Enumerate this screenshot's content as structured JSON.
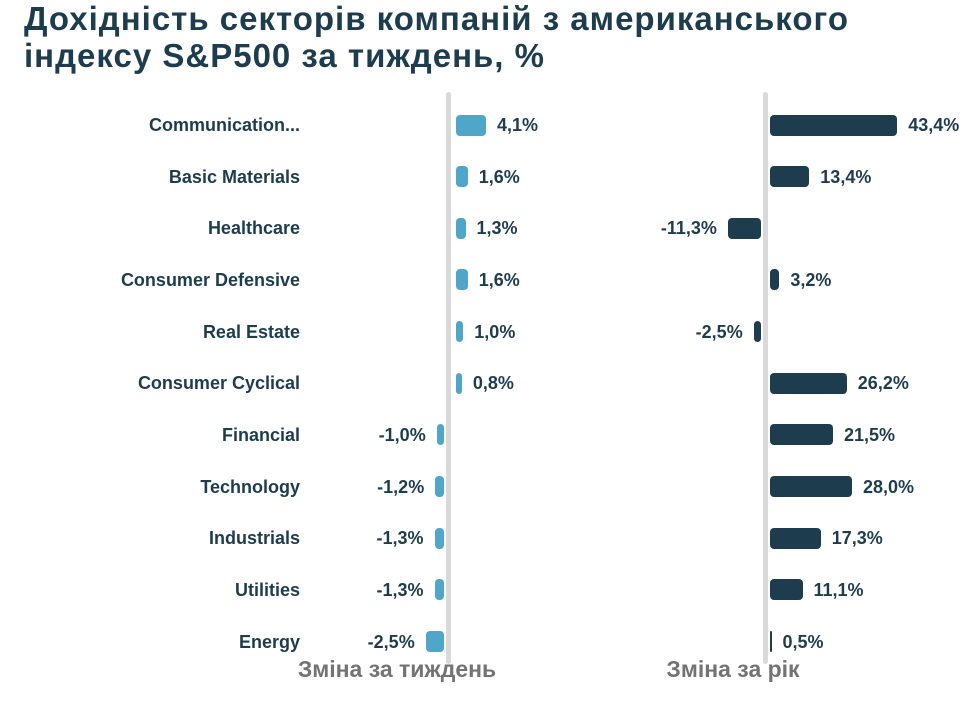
{
  "title": {
    "line1": "Дохідність секторів компаній з американського",
    "line2": "індексу S&P500 за тиждень, %"
  },
  "colors": {
    "title_text": "#1d3d4e",
    "category_text": "#1d3d4e",
    "value_text": "#1d3d4e",
    "week_bar": "#4fa6c9",
    "year_bar": "#1d3d4e",
    "axis_line": "#d9d9d9",
    "axis_title_text": "#737373",
    "background": "#ffffff"
  },
  "chart_data": {
    "type": "bar",
    "orientation": "horizontal",
    "grid": false,
    "value_suffix": "%",
    "decimal_separator": ",",
    "categories": [
      "Communication...",
      "Basic Materials",
      "Healthcare",
      "Consumer Defensive",
      "Real Estate",
      "Consumer Cyclical",
      "Financial",
      "Technology",
      "Industrials",
      "Utilities",
      "Energy"
    ],
    "series": [
      {
        "name": "Зміна за тиждень",
        "values": [
          4.1,
          1.6,
          1.3,
          1.6,
          1.0,
          0.8,
          -1.0,
          -1.2,
          -1.3,
          -1.3,
          -2.5
        ],
        "labels": [
          "4,1%",
          "1,6%",
          "1,3%",
          "1,6%",
          "1,0%",
          "0,8%",
          "-1,0%",
          "-1,2%",
          "-1,3%",
          "-1,3%",
          "-2,5%"
        ],
        "color": "#4fa6c9"
      },
      {
        "name": "Зміна за рік",
        "values": [
          43.4,
          13.4,
          -11.3,
          3.2,
          -2.5,
          26.2,
          21.5,
          28.0,
          17.3,
          11.1,
          0.5
        ],
        "labels": [
          "43,4%",
          "13,4%",
          "-11,3%",
          "3,2%",
          "-2,5%",
          "26,2%",
          "21,5%",
          "28,0%",
          "17,3%",
          "11,1%",
          "0,5%"
        ],
        "color": "#1d3d4e"
      }
    ]
  }
}
